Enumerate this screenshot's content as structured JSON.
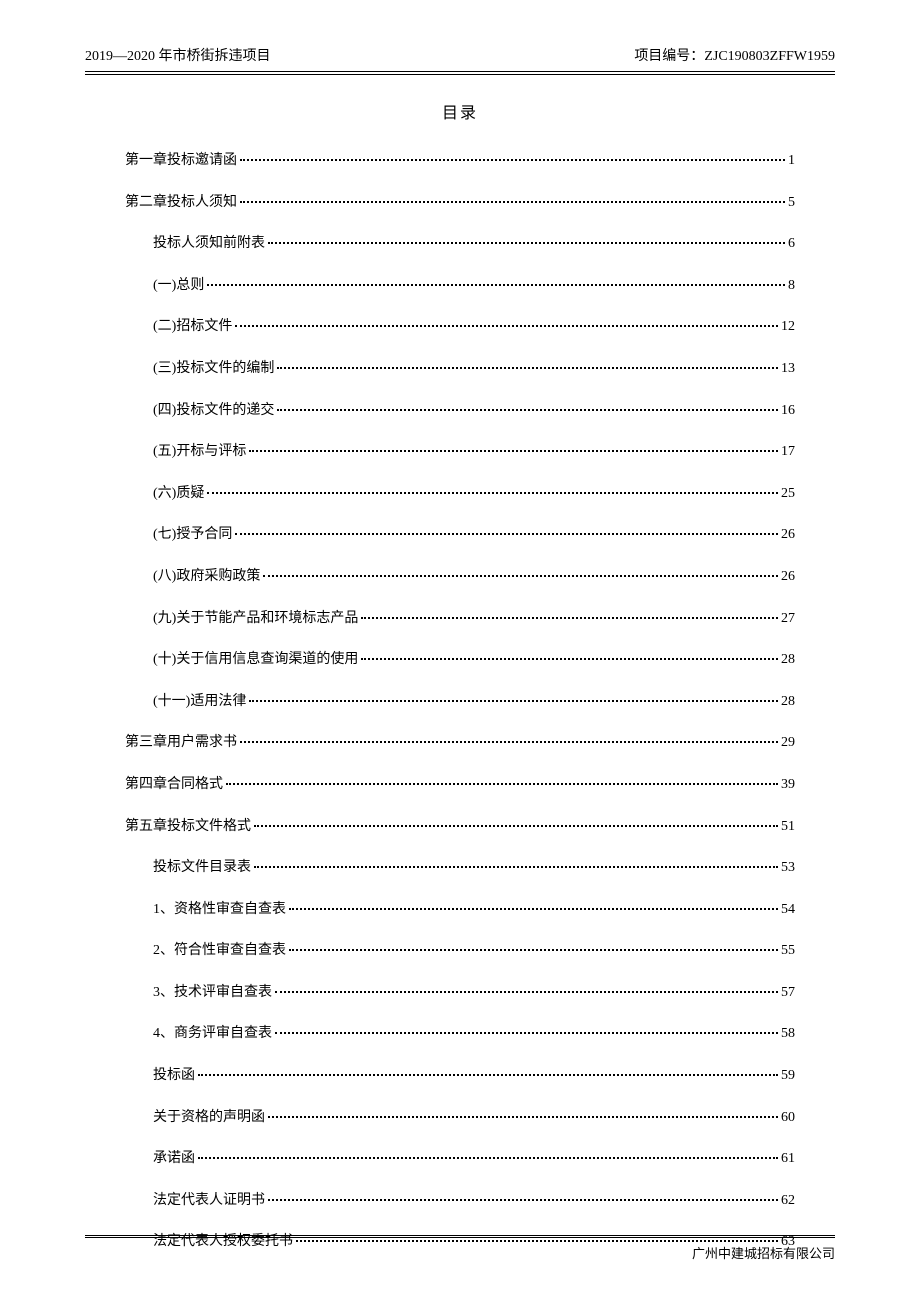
{
  "header": {
    "left": "2019—2020 年市桥街拆违项目",
    "right_label": "项目编号：",
    "right_value": "ZJC190803ZFFW1959"
  },
  "toc_title": "目录",
  "toc": [
    {
      "label": "第一章投标邀请函",
      "page": "1",
      "indent": false
    },
    {
      "label": "第二章投标人须知",
      "page": "5",
      "indent": false
    },
    {
      "label": "投标人须知前附表",
      "page": "6",
      "indent": true
    },
    {
      "label": "(一)总则",
      "page": "8",
      "indent": true
    },
    {
      "label": "(二)招标文件",
      "page": "12",
      "indent": true
    },
    {
      "label": "(三)投标文件的编制",
      "page": "13",
      "indent": true
    },
    {
      "label": "(四)投标文件的递交",
      "page": "16",
      "indent": true
    },
    {
      "label": "(五)开标与评标",
      "page": "17",
      "indent": true
    },
    {
      "label": "(六)质疑",
      "page": "25",
      "indent": true
    },
    {
      "label": "(七)授予合同",
      "page": "26",
      "indent": true
    },
    {
      "label": "(八)政府采购政策",
      "page": "26",
      "indent": true
    },
    {
      "label": "(九)关于节能产品和环境标志产品",
      "page": "27",
      "indent": true
    },
    {
      "label": "(十)关于信用信息查询渠道的使用",
      "page": "28",
      "indent": true
    },
    {
      "label": "(十一)适用法律",
      "page": "28",
      "indent": true
    },
    {
      "label": "第三章用户需求书",
      "page": "29",
      "indent": false
    },
    {
      "label": "第四章合同格式",
      "page": "39",
      "indent": false
    },
    {
      "label": "第五章投标文件格式",
      "page": "51",
      "indent": false
    },
    {
      "label": "投标文件目录表",
      "page": "53",
      "indent": true
    },
    {
      "label": "1、资格性审查自查表",
      "page": "54",
      "indent": true
    },
    {
      "label": "2、符合性审查自查表",
      "page": "55",
      "indent": true
    },
    {
      "label": "3、技术评审自查表",
      "page": "57",
      "indent": true
    },
    {
      "label": "4、商务评审自查表",
      "page": "58",
      "indent": true
    },
    {
      "label": "投标函",
      "page": "59",
      "indent": true
    },
    {
      "label": "关于资格的声明函",
      "page": "60",
      "indent": true
    },
    {
      "label": "承诺函",
      "page": "61",
      "indent": true
    },
    {
      "label": "法定代表人证明书",
      "page": "62",
      "indent": true
    },
    {
      "label": "法定代表人授权委托书",
      "page": "63",
      "indent": true
    }
  ],
  "footer": "广州中建城招标有限公司"
}
